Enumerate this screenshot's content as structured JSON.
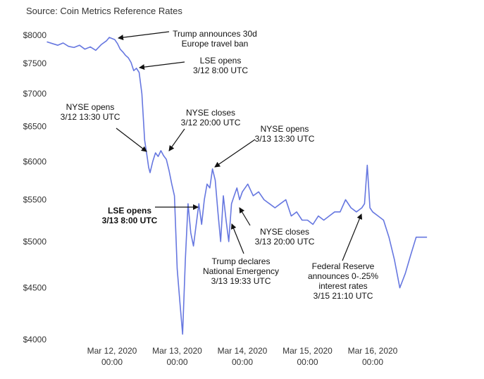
{
  "source_text": "Source: Coin Metrics Reference Rates",
  "chart_data": {
    "type": "line",
    "ylim": [
      4000,
      8000
    ],
    "y_scale": "log",
    "y_ticks": [
      {
        "value": 4000,
        "label": "$4000"
      },
      {
        "value": 4500,
        "label": "$4500"
      },
      {
        "value": 5000,
        "label": "$5000"
      },
      {
        "value": 5500,
        "label": "$5500"
      },
      {
        "value": 6000,
        "label": "$6000"
      },
      {
        "value": 6500,
        "label": "$6500"
      },
      {
        "value": 7000,
        "label": "$7000"
      },
      {
        "value": 7500,
        "label": "$7500"
      },
      {
        "value": 8000,
        "label": "$8000"
      }
    ],
    "x_ticks": [
      {
        "value": "2020-03-12 00:00",
        "line1": "Mar 12, 2020",
        "line2": "00:00"
      },
      {
        "value": "2020-03-13 00:00",
        "line1": "Mar 13, 2020",
        "line2": "00:00"
      },
      {
        "value": "2020-03-14 00:00",
        "line1": "Mar 14, 2020",
        "line2": "00:00"
      },
      {
        "value": "2020-03-15 00:00",
        "line1": "Mar 15, 2020",
        "line2": "00:00"
      },
      {
        "value": "2020-03-16 00:00",
        "line1": "Mar 16, 2020",
        "line2": "00:00"
      }
    ],
    "series": [
      {
        "color": "#6677e0",
        "x": [
          "2020-03-11 00:00",
          "2020-03-11 02:00",
          "2020-03-11 04:00",
          "2020-03-11 06:00",
          "2020-03-11 08:00",
          "2020-03-11 10:00",
          "2020-03-11 12:00",
          "2020-03-11 14:00",
          "2020-03-11 16:00",
          "2020-03-11 18:00",
          "2020-03-11 20:00",
          "2020-03-11 22:00",
          "2020-03-11 23:00",
          "2020-03-12 01:00",
          "2020-03-12 02:00",
          "2020-03-12 03:00",
          "2020-03-12 04:00",
          "2020-03-12 05:00",
          "2020-03-12 06:00",
          "2020-03-12 07:00",
          "2020-03-12 08:00",
          "2020-03-12 09:00",
          "2020-03-12 10:00",
          "2020-03-12 11:00",
          "2020-03-12 12:00",
          "2020-03-12 13:00",
          "2020-03-12 13:30",
          "2020-03-12 14:00",
          "2020-03-12 15:00",
          "2020-03-12 16:00",
          "2020-03-12 17:00",
          "2020-03-12 18:00",
          "2020-03-12 19:00",
          "2020-03-12 20:00",
          "2020-03-12 21:00",
          "2020-03-12 22:00",
          "2020-03-12 23:00",
          "2020-03-13 00:00",
          "2020-03-13 01:00",
          "2020-03-13 02:00",
          "2020-03-13 03:00",
          "2020-03-13 04:00",
          "2020-03-13 05:00",
          "2020-03-13 06:00",
          "2020-03-13 07:00",
          "2020-03-13 08:00",
          "2020-03-13 09:00",
          "2020-03-13 10:00",
          "2020-03-13 11:00",
          "2020-03-13 12:00",
          "2020-03-13 13:00",
          "2020-03-13 14:00",
          "2020-03-13 15:00",
          "2020-03-13 16:00",
          "2020-03-13 17:00",
          "2020-03-13 18:00",
          "2020-03-13 19:00",
          "2020-03-13 20:00",
          "2020-03-13 21:00",
          "2020-03-13 22:00",
          "2020-03-13 23:00",
          "2020-03-14 00:00",
          "2020-03-14 02:00",
          "2020-03-14 04:00",
          "2020-03-14 06:00",
          "2020-03-14 08:00",
          "2020-03-14 10:00",
          "2020-03-14 12:00",
          "2020-03-14 14:00",
          "2020-03-14 16:00",
          "2020-03-14 18:00",
          "2020-03-14 20:00",
          "2020-03-14 22:00",
          "2020-03-15 00:00",
          "2020-03-15 02:00",
          "2020-03-15 04:00",
          "2020-03-15 06:00",
          "2020-03-15 08:00",
          "2020-03-15 10:00",
          "2020-03-15 12:00",
          "2020-03-15 14:00",
          "2020-03-15 16:00",
          "2020-03-15 18:00",
          "2020-03-15 20:00",
          "2020-03-15 21:00",
          "2020-03-15 22:00",
          "2020-03-15 23:00",
          "2020-03-16 00:00",
          "2020-03-16 02:00",
          "2020-03-16 04:00",
          "2020-03-16 06:00",
          "2020-03-16 08:00",
          "2020-03-16 10:00",
          "2020-03-16 12:00",
          "2020-03-16 14:00",
          "2020-03-16 16:00",
          "2020-03-16 18:00",
          "2020-03-16 20:00"
        ],
        "values": [
          7880,
          7850,
          7820,
          7860,
          7800,
          7780,
          7820,
          7750,
          7790,
          7730,
          7830,
          7900,
          7960,
          7920,
          7850,
          7750,
          7700,
          7640,
          7600,
          7520,
          7380,
          7420,
          7350,
          7000,
          6300,
          6050,
          5920,
          5850,
          6000,
          6120,
          6070,
          6150,
          6080,
          6030,
          5880,
          5700,
          5550,
          4700,
          4350,
          4050,
          4800,
          5450,
          5100,
          4950,
          5200,
          5450,
          5200,
          5500,
          5700,
          5650,
          5900,
          5750,
          5350,
          5000,
          5550,
          5250,
          5000,
          5450,
          5550,
          5650,
          5500,
          5600,
          5700,
          5550,
          5600,
          5500,
          5450,
          5400,
          5450,
          5500,
          5300,
          5350,
          5250,
          5250,
          5200,
          5300,
          5250,
          5300,
          5350,
          5350,
          5500,
          5400,
          5350,
          5400,
          5450,
          5950,
          5400,
          5350,
          5300,
          5250,
          5050,
          4800,
          4500,
          4650,
          4850,
          5050,
          5050,
          5050
        ]
      }
    ],
    "annotations": [
      {
        "lines": [
          "Trump announces 30d",
          "Europe travel ban"
        ],
        "bold": false
      },
      {
        "lines": [
          "LSE opens",
          "3/12 8:00 UTC"
        ],
        "bold": false
      },
      {
        "lines": [
          "NYSE opens",
          "3/12 13:30 UTC"
        ],
        "bold": false
      },
      {
        "lines": [
          "NYSE closes",
          "3/12 20:00 UTC"
        ],
        "bold": false
      },
      {
        "lines": [
          "NYSE opens",
          "3/13 13:30 UTC"
        ],
        "bold": false
      },
      {
        "lines": [
          "LSE opens",
          "3/13 8:00 UTC"
        ],
        "bold": true
      },
      {
        "lines": [
          "NYSE closes",
          "3/13 20:00 UTC"
        ],
        "bold": false
      },
      {
        "lines": [
          "Trump declares",
          "National Emergency",
          "3/13 19:33 UTC"
        ],
        "bold": false
      },
      {
        "lines": [
          "Federal Reserve",
          "announces 0-.25%",
          "interest rates",
          "3/15 21:10 UTC"
        ],
        "bold": false
      }
    ]
  }
}
